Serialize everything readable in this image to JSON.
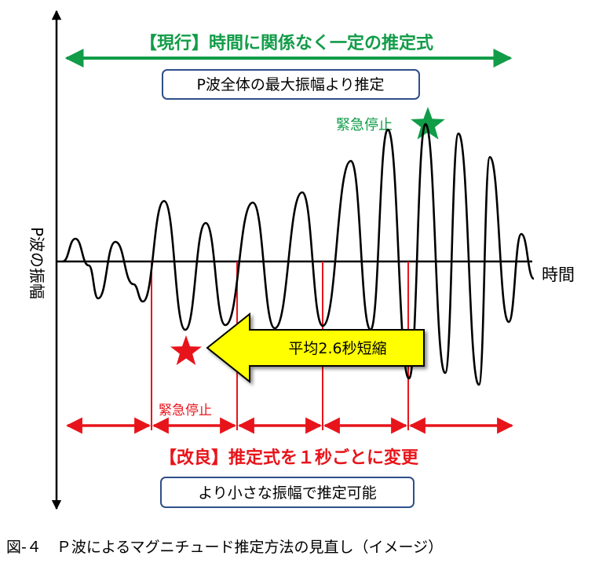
{
  "diagram": {
    "y_axis_label": "P波の振幅",
    "x_axis_label": "時間",
    "current": {
      "title": "【現行】時間に関係なく一定の推定式",
      "box_text": "P波全体の最大振幅より推定",
      "stop_label": "緊急停止",
      "color": "#119c48"
    },
    "improved": {
      "title": "【改良】推定式を１秒ごとに変更",
      "box_text": "より小さな振幅で推定可能",
      "stop_label": "緊急停止",
      "color": "#e8141b"
    },
    "shortening_arrow_text": "平均2.6秒短縮",
    "shortening_arrow_color": "#ffff00",
    "box_border_color": "#2f4f8a"
  },
  "caption": "図-４　Ｐ波によるマグニチュード推定方法の見直し（イメージ）"
}
